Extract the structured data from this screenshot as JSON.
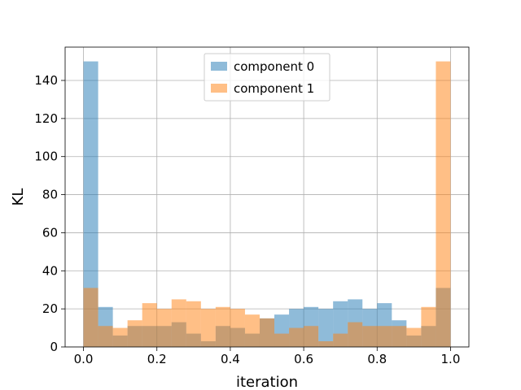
{
  "chart_data": {
    "type": "bar",
    "subtype": "overlapping-histogram",
    "xlabel": "iteration",
    "ylabel": "KL",
    "xlim": [
      -0.05,
      1.05
    ],
    "ylim": [
      0,
      157.5
    ],
    "xticks": [
      0.0,
      0.2,
      0.4,
      0.6,
      0.8,
      1.0
    ],
    "xtick_labels": [
      "0.0",
      "0.2",
      "0.4",
      "0.6",
      "0.8",
      "1.0"
    ],
    "yticks": [
      0,
      20,
      40,
      60,
      80,
      100,
      120,
      140
    ],
    "ytick_labels": [
      "0",
      "20",
      "40",
      "60",
      "80",
      "100",
      "120",
      "140"
    ],
    "grid": true,
    "legend_position": "top-center",
    "bin_edges": [
      0.0,
      0.04,
      0.08,
      0.12,
      0.16,
      0.2,
      0.24,
      0.28,
      0.32,
      0.36,
      0.4,
      0.44,
      0.48,
      0.52,
      0.56,
      0.6,
      0.64,
      0.68,
      0.72,
      0.76,
      0.8,
      0.84,
      0.88,
      0.92,
      0.96,
      1.0
    ],
    "series": [
      {
        "name": "component 0",
        "color": "#1f77b4",
        "alpha": 0.5,
        "values": [
          150,
          21,
          6,
          11,
          11,
          11,
          13,
          7,
          3,
          11,
          10,
          7,
          15,
          17,
          20,
          21,
          20,
          24,
          25,
          20,
          23,
          14,
          6,
          11,
          31
        ]
      },
      {
        "name": "component 1",
        "color": "#ff7f0e",
        "alpha": 0.5,
        "values": [
          31,
          11,
          10,
          14,
          23,
          20,
          25,
          24,
          20,
          21,
          20,
          17,
          15,
          7,
          10,
          11,
          3,
          7,
          13,
          11,
          11,
          11,
          10,
          21,
          150
        ]
      }
    ]
  }
}
